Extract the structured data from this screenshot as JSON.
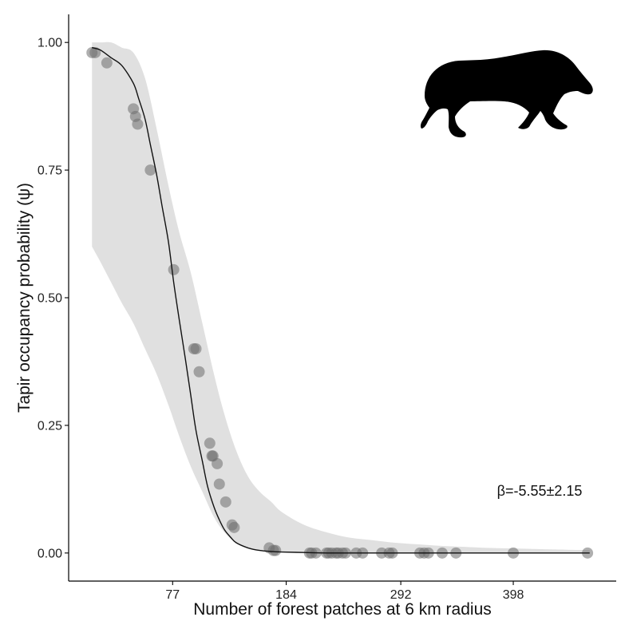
{
  "chart_data": {
    "type": "line",
    "title": "",
    "xlabel": "Number of forest patches at 6 km radius",
    "ylabel": "Tapir occupancy probability (ψ)",
    "xlim": [
      -21,
      495
    ],
    "ylim": [
      -0.055,
      1.055
    ],
    "x_ticks": [
      77,
      184,
      292,
      398
    ],
    "x_tick_labels": [
      "77",
      "184",
      "292",
      "398"
    ],
    "y_ticks": [
      0,
      0.25,
      0.5,
      0.75,
      1.0
    ],
    "y_tick_labels": [
      "0.00",
      "0.25",
      "0.50",
      "0.75",
      "1.00"
    ],
    "grid": false,
    "annotation": "β=-5.55±2.15",
    "icon": "tapir-silhouette",
    "colors": {
      "ribbon": "#e0e0e0",
      "line": "#111111",
      "points": "#6e6e6e",
      "axis": "#000000"
    },
    "series": [
      {
        "type": "ribbon",
        "x": [
          1,
          9,
          19,
          29,
          40,
          51,
          62,
          73,
          83,
          94,
          105,
          116,
          126,
          137,
          148,
          159,
          170,
          180,
          201,
          223,
          244,
          266,
          287,
          309,
          330,
          352,
          373,
          395,
          416,
          438,
          459,
          470
        ],
        "lower": [
          0.6,
          0.57,
          0.53,
          0.49,
          0.45,
          0.4,
          0.35,
          0.29,
          0.23,
          0.17,
          0.12,
          0.07,
          0.04,
          0.02,
          0.01,
          0.005,
          0.003,
          0.002,
          0.001,
          0.0,
          0.0,
          0.0,
          0.0,
          0.0,
          0.0,
          0.0,
          0.0,
          0.0,
          0.0,
          0.0,
          0.0,
          0.0
        ],
        "upper": [
          1.0,
          1.0,
          1.0,
          0.99,
          0.98,
          0.93,
          0.83,
          0.72,
          0.63,
          0.55,
          0.45,
          0.35,
          0.27,
          0.2,
          0.15,
          0.12,
          0.1,
          0.08,
          0.055,
          0.04,
          0.03,
          0.025,
          0.02,
          0.017,
          0.014,
          0.012,
          0.01,
          0.009,
          0.008,
          0.007,
          0.006,
          0.006
        ]
      },
      {
        "type": "line",
        "x": [
          1,
          9,
          19,
          29,
          40,
          45,
          51,
          56,
          62,
          67,
          73,
          78,
          83,
          89,
          94,
          99,
          105,
          110,
          116,
          121,
          126,
          132,
          137,
          148,
          159,
          170,
          180,
          201,
          223,
          266,
          309,
          352,
          395,
          438,
          470
        ],
        "y": [
          0.99,
          0.985,
          0.97,
          0.955,
          0.92,
          0.89,
          0.85,
          0.8,
          0.74,
          0.68,
          0.61,
          0.53,
          0.46,
          0.38,
          0.31,
          0.24,
          0.18,
          0.13,
          0.09,
          0.065,
          0.045,
          0.03,
          0.02,
          0.01,
          0.005,
          0.003,
          0.002,
          0.001,
          0.0,
          0.0,
          0.0,
          0.0,
          0.0,
          0.0,
          0.0
        ]
      },
      {
        "type": "scatter",
        "x": [
          1,
          4,
          15,
          40,
          42,
          44,
          56,
          78,
          97,
          99,
          102,
          112,
          114,
          115,
          119,
          121,
          127,
          133,
          135,
          168,
          172,
          174,
          206,
          208,
          212,
          222,
          224,
          227,
          231,
          233,
          237,
          240,
          250,
          256,
          274,
          281,
          284,
          310,
          314,
          318,
          331,
          344,
          398,
          468
        ],
        "y": [
          0.98,
          0.98,
          0.96,
          0.87,
          0.855,
          0.84,
          0.75,
          0.555,
          0.4,
          0.4,
          0.355,
          0.215,
          0.19,
          0.19,
          0.175,
          0.135,
          0.1,
          0.055,
          0.05,
          0.01,
          0.005,
          0.005,
          0.0,
          0.0,
          0.0,
          0.0,
          0.0,
          0.0,
          0.0,
          0.0,
          0.0,
          0.0,
          0.0,
          0.0,
          0.0,
          0.0,
          0.0,
          0.0,
          0.0,
          0.0,
          0.0,
          0.0,
          0.0,
          0.0
        ]
      }
    ]
  }
}
